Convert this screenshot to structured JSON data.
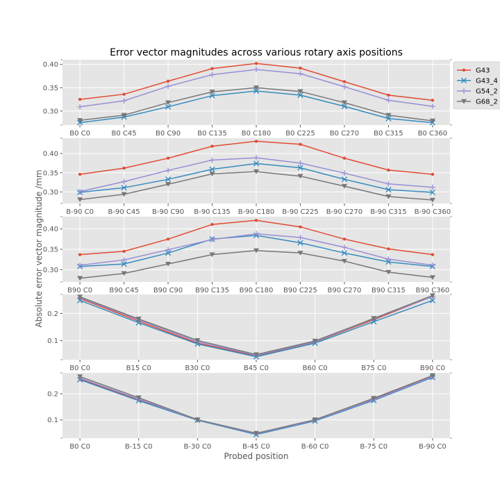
{
  "chart_data": {
    "type": "line",
    "title": "Error vector magnitudes across various rotary axis positions",
    "xlabel": "Probed position",
    "ylabel": "Absolute error vector magnitude /mm",
    "grid": true,
    "legend_position": "right-of-top-panel",
    "series_styles": [
      {
        "name": "G43",
        "color": "#E24A33",
        "marker": "dot"
      },
      {
        "name": "G43_4",
        "color": "#348ABD",
        "marker": "x"
      },
      {
        "name": "G54_2",
        "color": "#988ED5",
        "marker": "plus"
      },
      {
        "name": "G68_2",
        "color": "#777777",
        "marker": "triangle-down"
      }
    ],
    "panels": [
      {
        "categories": [
          "B0 C0",
          "B0 C45",
          "B0 C90",
          "B0 C135",
          "B0 C180",
          "B0 C225",
          "B0 C270",
          "B0 C315",
          "B0 C360"
        ],
        "ylim": [
          0.27,
          0.41
        ],
        "yticks": [
          "0.30",
          "0.35",
          "0.40"
        ],
        "series": [
          {
            "name": "G43",
            "values": [
              0.325,
              0.336,
              0.364,
              0.391,
              0.402,
              0.392,
              0.363,
              0.334,
              0.323
            ]
          },
          {
            "name": "G43_4",
            "values": [
              0.275,
              0.287,
              0.309,
              0.333,
              0.343,
              0.334,
              0.31,
              0.284,
              0.275
            ]
          },
          {
            "name": "G54_2",
            "values": [
              0.309,
              0.322,
              0.353,
              0.378,
              0.389,
              0.38,
              0.352,
              0.323,
              0.31
            ]
          },
          {
            "name": "G68_2",
            "values": [
              0.28,
              0.291,
              0.318,
              0.341,
              0.35,
              0.342,
              0.318,
              0.291,
              0.279
            ]
          }
        ]
      },
      {
        "categories": [
          "B-90 C0",
          "B-90 C45",
          "B-90 C90",
          "B-90 C135",
          "B-90 C180",
          "B-90 C225",
          "B-90 C270",
          "B-90 C315",
          "B-90 C360"
        ],
        "ylim": [
          0.27,
          0.44
        ],
        "yticks": [
          "0.30",
          "0.35",
          "0.40"
        ],
        "series": [
          {
            "name": "G43",
            "values": [
              0.346,
              0.362,
              0.388,
              0.419,
              0.432,
              0.424,
              0.388,
              0.357,
              0.346
            ]
          },
          {
            "name": "G43_4",
            "values": [
              0.299,
              0.311,
              0.333,
              0.359,
              0.374,
              0.363,
              0.333,
              0.306,
              0.299
            ]
          },
          {
            "name": "G54_2",
            "values": [
              0.301,
              0.327,
              0.356,
              0.383,
              0.389,
              0.375,
              0.349,
              0.321,
              0.312
            ]
          },
          {
            "name": "G68_2",
            "values": [
              0.28,
              0.294,
              0.32,
              0.347,
              0.353,
              0.341,
              0.315,
              0.288,
              0.279
            ]
          }
        ]
      },
      {
        "categories": [
          "B90 C0",
          "B90 C45",
          "B90 C90",
          "B90 C135",
          "B90 C180",
          "B90 C225",
          "B90 C270",
          "B90 C315",
          "B90 C360"
        ],
        "ylim": [
          0.27,
          0.43
        ],
        "yticks": [
          "0.30",
          "0.35",
          "0.40"
        ],
        "series": [
          {
            "name": "G43",
            "values": [
              0.337,
              0.345,
              0.375,
              0.411,
              0.421,
              0.405,
              0.375,
              0.351,
              0.337
            ]
          },
          {
            "name": "G43_4",
            "values": [
              0.308,
              0.314,
              0.341,
              0.375,
              0.384,
              0.366,
              0.341,
              0.319,
              0.308
            ]
          },
          {
            "name": "G54_2",
            "values": [
              0.311,
              0.324,
              0.349,
              0.374,
              0.388,
              0.379,
              0.355,
              0.326,
              0.311
            ]
          },
          {
            "name": "G68_2",
            "values": [
              0.279,
              0.291,
              0.314,
              0.337,
              0.347,
              0.341,
              0.321,
              0.294,
              0.281
            ]
          }
        ]
      },
      {
        "categories": [
          "B0 C0",
          "B15 C0",
          "B30 C0",
          "B45 C0",
          "B60 C0",
          "B75 C0",
          "B90 C0"
        ],
        "ylim": [
          0.03,
          0.27
        ],
        "yticks": [
          "0.1",
          "0.2"
        ],
        "series": [
          {
            "name": "G43",
            "values": [
              0.255,
              0.172,
              0.091,
              0.044,
              0.095,
              0.177,
              0.263
            ]
          },
          {
            "name": "G43_4",
            "values": [
              0.248,
              0.166,
              0.088,
              0.041,
              0.091,
              0.17,
              0.248
            ]
          },
          {
            "name": "G54_2",
            "values": [
              0.258,
              0.177,
              0.096,
              0.046,
              0.096,
              0.181,
              0.262
            ]
          },
          {
            "name": "G68_2",
            "values": [
              0.261,
              0.18,
              0.101,
              0.049,
              0.099,
              0.182,
              0.266
            ]
          }
        ]
      },
      {
        "categories": [
          "B0 C0",
          "B-15 C0",
          "B-30 C0",
          "B-45 C0",
          "B-60 C0",
          "B-75 C0",
          "B-90 C0"
        ],
        "ylim": [
          0.03,
          0.28
        ],
        "yticks": [
          "0.1",
          "0.2"
        ],
        "series": [
          {
            "name": "G43",
            "values": [
              0.257,
              0.178,
              0.1,
              0.046,
              0.098,
              0.18,
              0.266
            ]
          },
          {
            "name": "G43_4",
            "values": [
              0.254,
              0.174,
              0.099,
              0.044,
              0.096,
              0.175,
              0.263
            ]
          },
          {
            "name": "G54_2",
            "values": [
              0.26,
              0.18,
              0.1,
              0.047,
              0.099,
              0.178,
              0.265
            ]
          },
          {
            "name": "G68_2",
            "values": [
              0.266,
              0.185,
              0.101,
              0.049,
              0.101,
              0.183,
              0.27
            ]
          }
        ]
      }
    ]
  }
}
